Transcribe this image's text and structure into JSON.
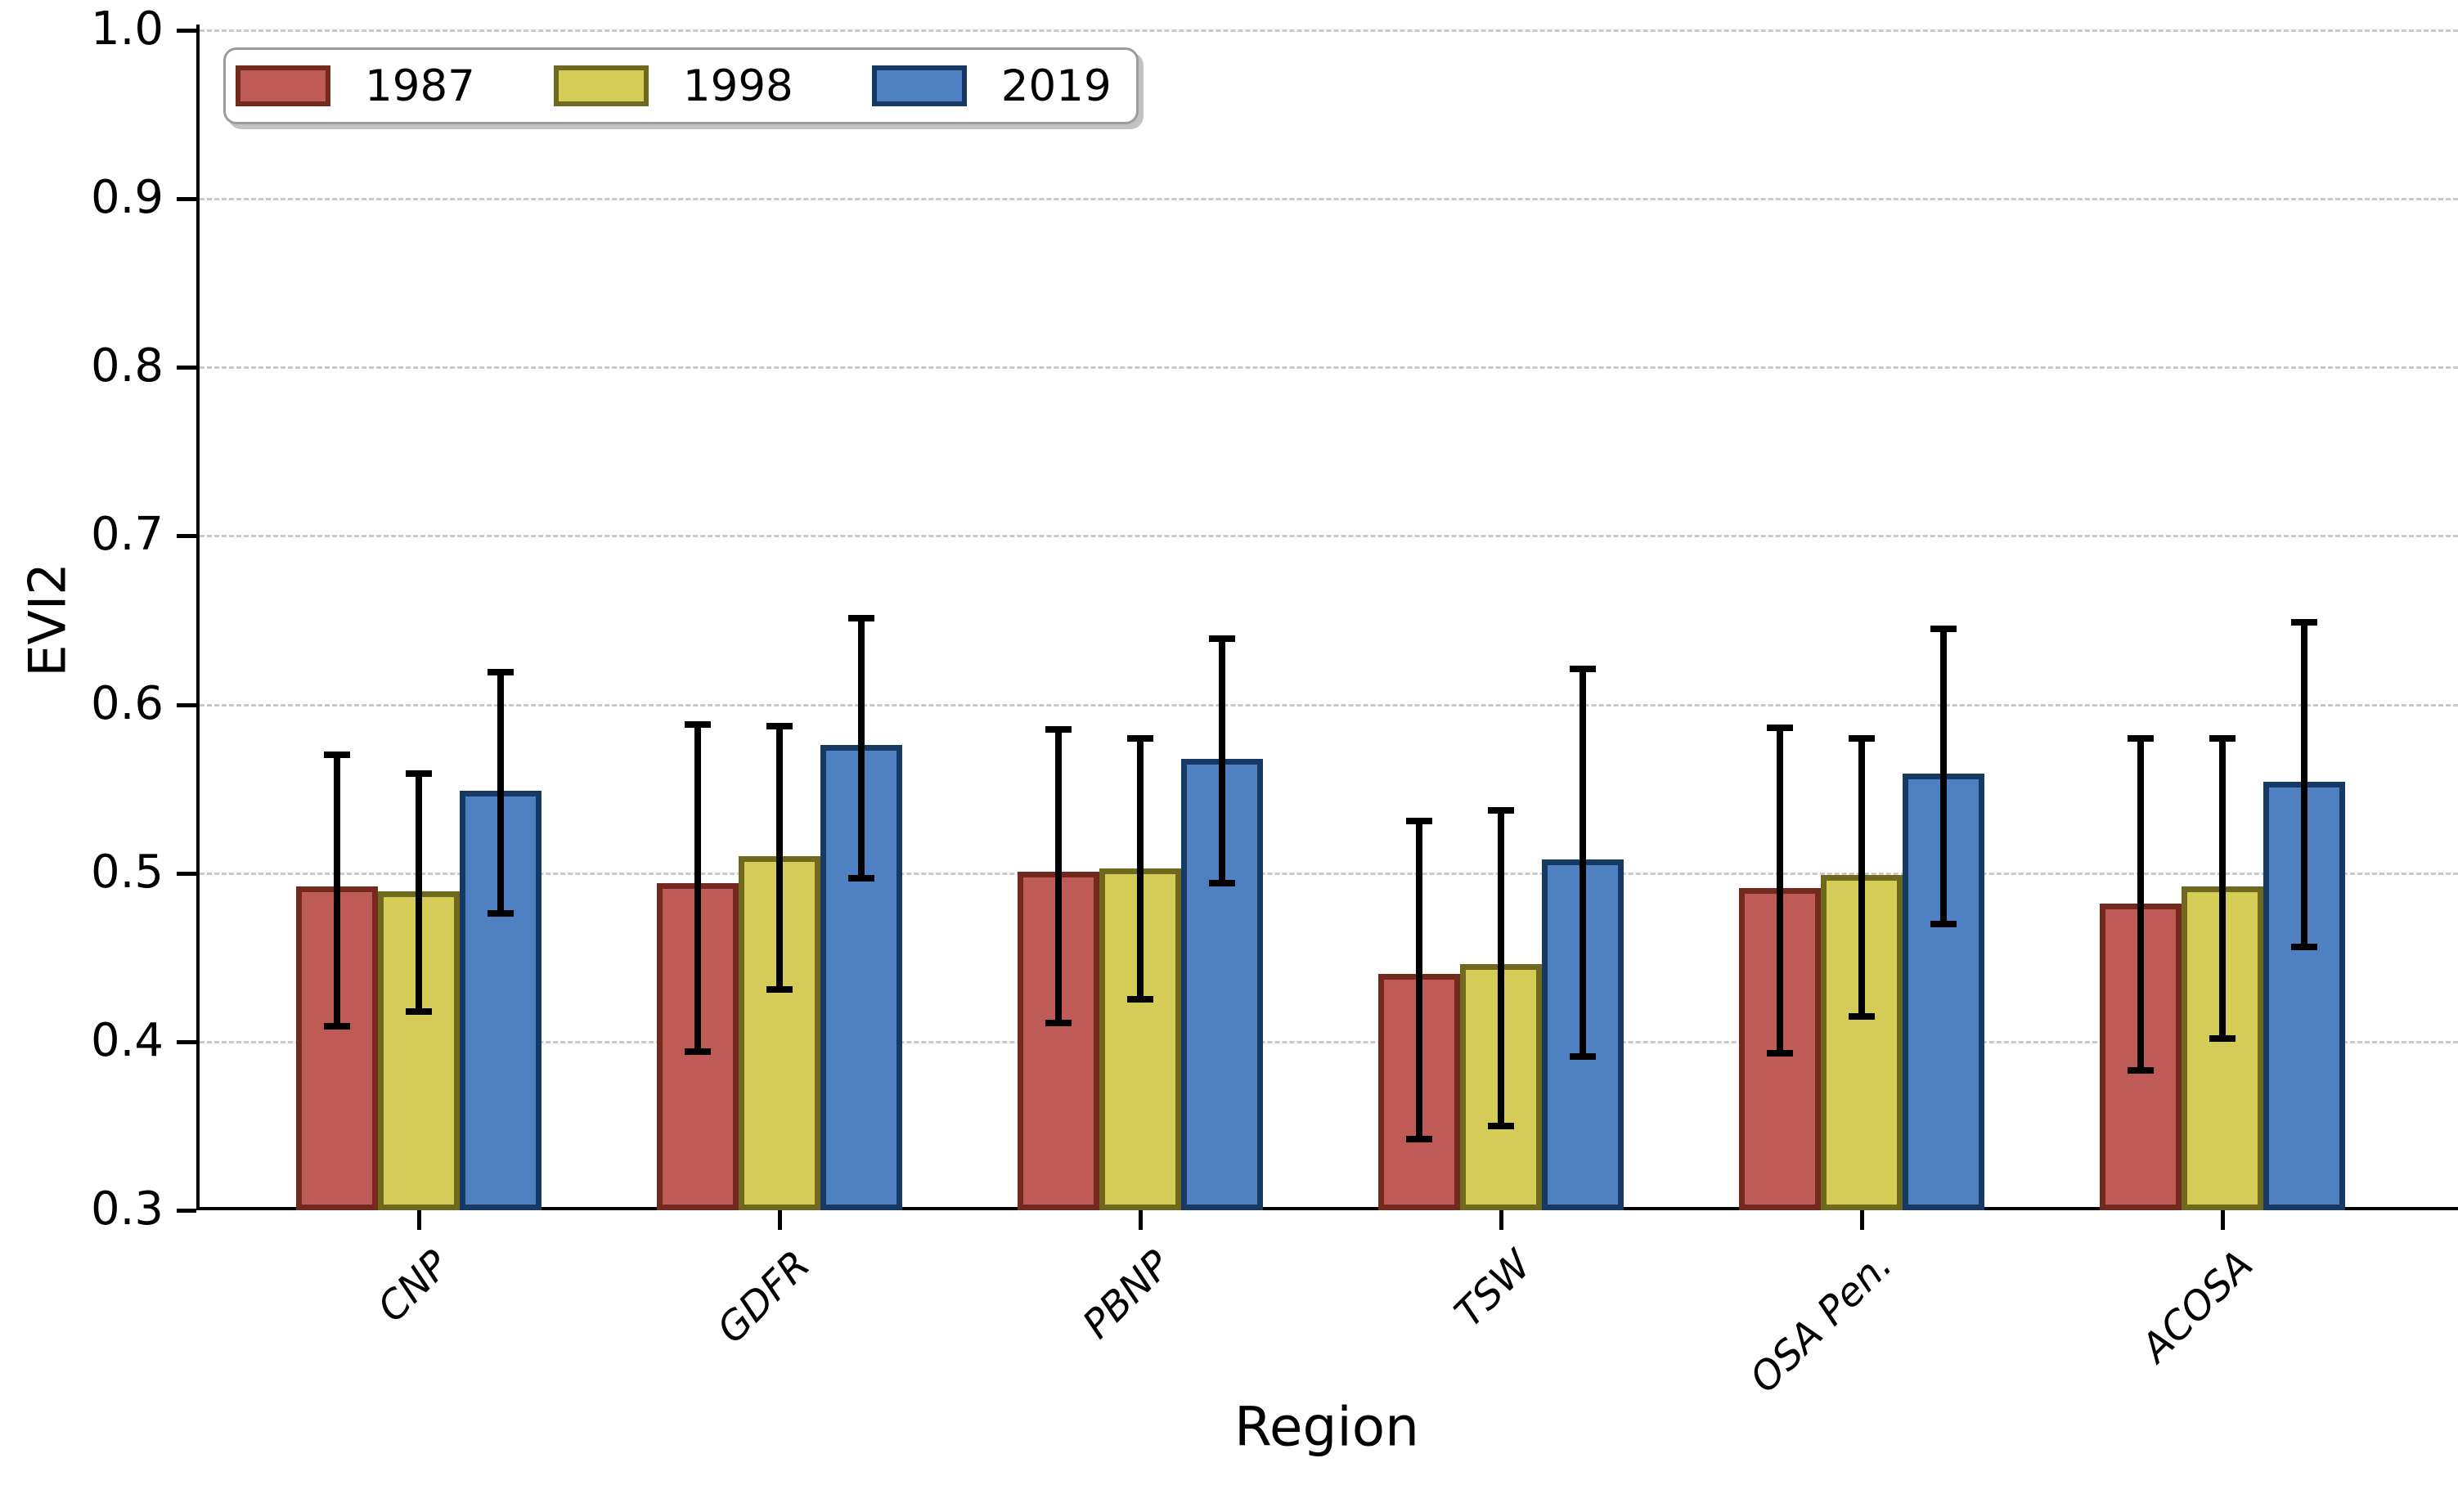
{
  "chart_data": {
    "type": "bar",
    "title": "",
    "xlabel": "Region",
    "ylabel": "EVI2",
    "ylim": [
      0.3,
      1.0
    ],
    "yticks": [
      0.3,
      0.4,
      0.5,
      0.6,
      0.7,
      0.8,
      0.9,
      1.0
    ],
    "grid": "horizontal-dashed",
    "grid_color": "#c9c9c9",
    "legend_position": "upper-left",
    "x_tick_label_style": "italic, rotated 45deg",
    "error_bars": true,
    "error_bar_color": "#000000",
    "categories": [
      "CNP",
      "GDFR",
      "PBNP",
      "TSW",
      "OSA Pen.",
      "ACOSA"
    ],
    "series": [
      {
        "name": "1987",
        "fill": "#bf5b56",
        "edge": "#74291f",
        "values": [
          0.492,
          0.494,
          0.501,
          0.44,
          0.491,
          0.482
        ],
        "err_low": [
          0.409,
          0.394,
          0.411,
          0.342,
          0.393,
          0.383
        ],
        "err_high": [
          0.57,
          0.588,
          0.585,
          0.531,
          0.586,
          0.58
        ]
      },
      {
        "name": "1998",
        "fill": "#d5cb57",
        "edge": "#6f691f",
        "values": [
          0.489,
          0.51,
          0.503,
          0.446,
          0.499,
          0.492
        ],
        "err_low": [
          0.418,
          0.431,
          0.425,
          0.35,
          0.415,
          0.402
        ],
        "err_high": [
          0.559,
          0.587,
          0.58,
          0.537,
          0.58,
          0.58
        ]
      },
      {
        "name": "2019",
        "fill": "#4f81c2",
        "edge": "#173a64",
        "values": [
          0.549,
          0.576,
          0.568,
          0.508,
          0.559,
          0.554
        ],
        "err_low": [
          0.476,
          0.497,
          0.494,
          0.391,
          0.47,
          0.456
        ],
        "err_high": [
          0.619,
          0.651,
          0.639,
          0.621,
          0.645,
          0.649
        ]
      }
    ]
  }
}
